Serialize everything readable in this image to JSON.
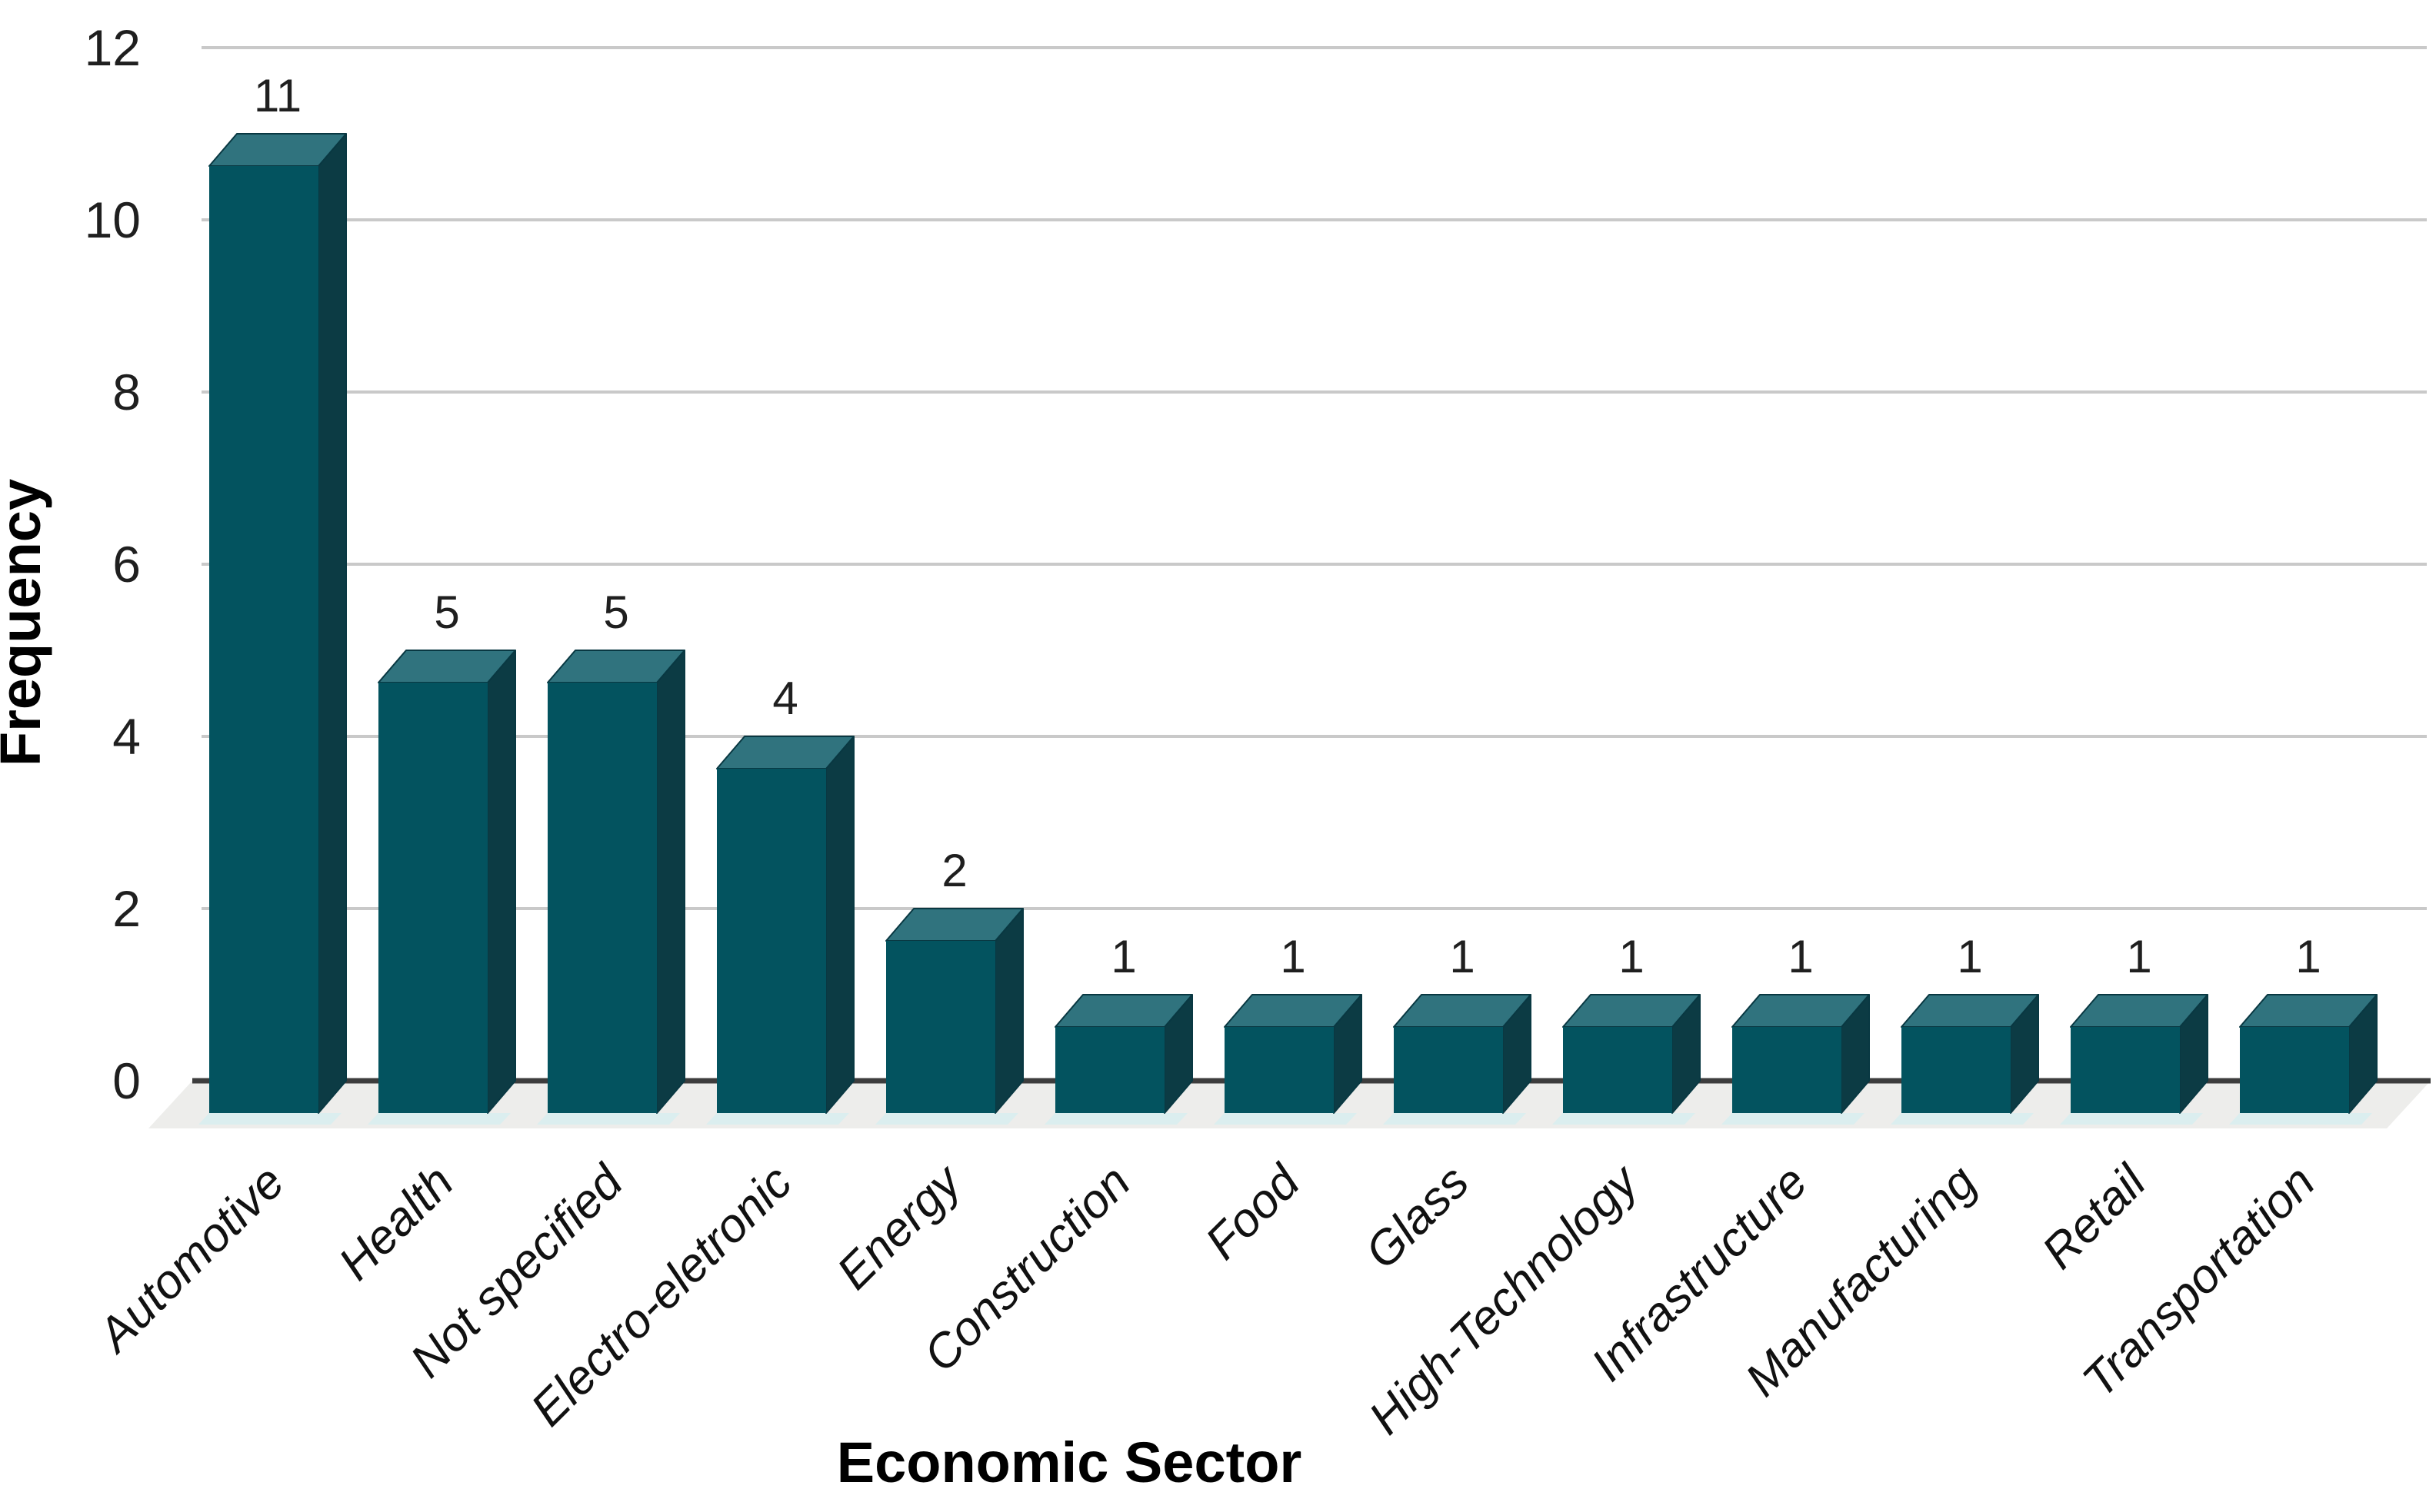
{
  "chart_data": {
    "type": "bar",
    "style": "3d-column",
    "title": "",
    "xlabel": "Economic Sector",
    "ylabel": "Frequency",
    "categories": [
      "Automotive",
      "Health",
      "Not specified",
      "Electro-eletronic",
      "Energy",
      "Construction",
      "Food",
      "Glass",
      "High-Technology",
      "Infrastructure",
      "Manufacturing",
      "Retail",
      "Transportation"
    ],
    "values": [
      11,
      5,
      5,
      4,
      2,
      1,
      1,
      1,
      1,
      1,
      1,
      1,
      1
    ],
    "value_labels": [
      "11",
      "5",
      "5",
      "4",
      "2",
      "1",
      "1",
      "1",
      "1",
      "1",
      "1",
      "1",
      "1"
    ],
    "yticks": [
      0,
      2,
      4,
      6,
      8,
      10,
      12
    ],
    "ylim": [
      0,
      12
    ],
    "grid": true,
    "legend": false,
    "colors": {
      "bar_front": "#03535f",
      "bar_top": "#30737e",
      "bar_side": "#0c3b44",
      "bar_edge": "#093842",
      "gridline": "#c9c9c9",
      "axis_line": "#3d3d3d",
      "floor": "#ededeb",
      "floor_reflection": "#d8edf0",
      "text": "#1f1f1f",
      "background": "#ffffff"
    }
  }
}
